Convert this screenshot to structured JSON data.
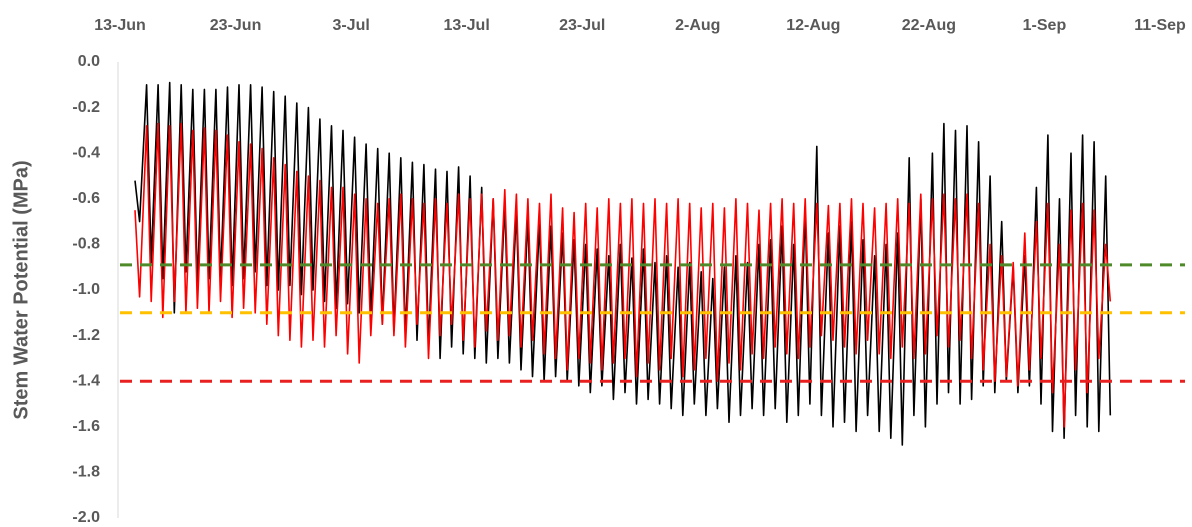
{
  "chart_data": {
    "type": "line",
    "y_label": "Stem Water Potential (MPa)",
    "xlim": [
      0,
      91
    ],
    "xticks": [
      {
        "value": 0,
        "label": "13-Jun"
      },
      {
        "value": 10,
        "label": "23-Jun"
      },
      {
        "value": 20,
        "label": "3-Jul"
      },
      {
        "value": 30,
        "label": "13-Jul"
      },
      {
        "value": 40,
        "label": "23-Jul"
      },
      {
        "value": 50,
        "label": "2-Aug"
      },
      {
        "value": 60,
        "label": "12-Aug"
      },
      {
        "value": 70,
        "label": "22-Aug"
      },
      {
        "value": 80,
        "label": "1-Sep"
      },
      {
        "value": 90,
        "label": "11-Sep"
      }
    ],
    "ylim": [
      -2,
      0
    ],
    "yticks": [
      {
        "value": 0,
        "label": "0.0"
      },
      -0.2,
      -0.4,
      -0.6,
      -0.8,
      {
        "value": -1,
        "label": "-1.0"
      },
      -1.2,
      -1.4,
      -1.6,
      -1.8,
      {
        "value": -2,
        "label": "-2.0"
      }
    ],
    "reference_lines": [
      {
        "value": -0.89,
        "color": "#4e8a2a"
      },
      {
        "value": -1.1,
        "color": "#ffc000"
      },
      {
        "value": -1.4,
        "color": "#e82020"
      }
    ],
    "x": [
      1.3,
      1.7,
      2.3,
      2.7,
      3.3,
      3.7,
      4.3,
      4.7,
      5.3,
      5.7,
      6.3,
      6.7,
      7.3,
      7.7,
      8.3,
      8.7,
      9.3,
      9.7,
      10.3,
      10.7,
      11.3,
      11.7,
      12.3,
      12.7,
      13.3,
      13.7,
      14.3,
      14.7,
      15.3,
      15.7,
      16.3,
      16.7,
      17.3,
      17.7,
      18.3,
      18.7,
      19.3,
      19.7,
      20.3,
      20.7,
      21.3,
      21.7,
      22.3,
      22.7,
      23.3,
      23.7,
      24.3,
      24.7,
      25.3,
      25.7,
      26.3,
      26.7,
      27.3,
      27.7,
      28.3,
      28.7,
      29.3,
      29.7,
      30.3,
      30.7,
      31.3,
      31.7,
      32.3,
      32.7,
      33.3,
      33.7,
      34.3,
      34.7,
      35.3,
      35.7,
      36.3,
      36.7,
      37.3,
      37.7,
      38.3,
      38.7,
      39.3,
      39.7,
      40.3,
      40.7,
      41.3,
      41.7,
      42.3,
      42.7,
      43.3,
      43.7,
      44.3,
      44.7,
      45.3,
      45.7,
      46.3,
      46.7,
      47.3,
      47.7,
      48.3,
      48.7,
      49.3,
      49.7,
      50.3,
      50.7,
      51.3,
      51.7,
      52.3,
      52.7,
      53.3,
      53.7,
      54.3,
      54.7,
      55.3,
      55.7,
      56.3,
      56.7,
      57.3,
      57.7,
      58.3,
      58.7,
      59.3,
      59.7,
      60.3,
      60.7,
      61.3,
      61.7,
      62.3,
      62.7,
      63.3,
      63.7,
      64.3,
      64.7,
      65.3,
      65.7,
      66.3,
      66.7,
      67.3,
      67.7,
      68.3,
      68.7,
      69.3,
      69.7,
      70.3,
      70.7,
      71.3,
      71.7,
      72.3,
      72.7,
      73.3,
      73.7,
      74.3,
      74.7,
      75.3,
      75.7,
      76.3,
      76.7,
      77.3,
      77.7,
      78.3,
      78.7,
      79.3,
      79.7,
      80.3,
      80.7,
      81.3,
      81.7,
      82.3,
      82.7,
      83.3,
      83.7,
      84.3,
      84.7,
      85.3,
      85.7
    ],
    "series": [
      {
        "color": "#000000",
        "values": [
          -0.52,
          -0.7,
          -0.1,
          -0.88,
          -0.1,
          -0.95,
          -0.09,
          -1.1,
          -0.1,
          -0.92,
          -0.12,
          -0.98,
          -0.12,
          -0.95,
          -0.12,
          -0.96,
          -0.11,
          -0.98,
          -0.1,
          -0.95,
          -0.1,
          -0.92,
          -0.11,
          -0.98,
          -0.13,
          -1.0,
          -0.15,
          -0.98,
          -0.18,
          -1.02,
          -0.2,
          -1.0,
          -0.25,
          -1.05,
          -0.28,
          -1.08,
          -0.3,
          -1.06,
          -0.33,
          -1.1,
          -0.36,
          -1.12,
          -0.38,
          -1.15,
          -0.4,
          -1.18,
          -0.42,
          -1.2,
          -0.44,
          -1.22,
          -0.45,
          -1.25,
          -0.47,
          -1.3,
          -0.48,
          -1.25,
          -0.46,
          -1.28,
          -0.5,
          -1.3,
          -0.55,
          -1.32,
          -0.6,
          -1.3,
          -0.62,
          -1.32,
          -0.65,
          -1.35,
          -0.68,
          -1.38,
          -0.7,
          -1.4,
          -0.72,
          -1.38,
          -0.75,
          -1.4,
          -0.78,
          -1.42,
          -0.8,
          -1.45,
          -0.82,
          -1.42,
          -0.85,
          -1.48,
          -0.8,
          -1.45,
          -0.86,
          -1.5,
          -0.82,
          -1.48,
          -0.88,
          -1.5,
          -0.85,
          -1.52,
          -0.9,
          -1.55,
          -0.88,
          -1.5,
          -0.92,
          -1.55,
          -0.95,
          -1.52,
          -0.9,
          -1.58,
          -0.85,
          -1.55,
          -0.88,
          -1.52,
          -0.8,
          -1.55,
          -0.78,
          -1.52,
          -0.72,
          -1.58,
          -0.8,
          -1.55,
          -0.65,
          -1.5,
          -0.37,
          -1.55,
          -0.75,
          -1.6,
          -0.72,
          -1.58,
          -0.7,
          -1.62,
          -0.78,
          -1.55,
          -0.85,
          -1.62,
          -0.8,
          -1.65,
          -0.75,
          -1.68,
          -0.42,
          -1.55,
          -0.6,
          -1.6,
          -0.4,
          -1.5,
          -0.27,
          -1.45,
          -0.3,
          -1.5,
          -0.28,
          -1.48,
          -0.35,
          -1.42,
          -0.5,
          -1.45,
          -0.7,
          -1.4,
          -0.9,
          -1.45,
          -0.85,
          -1.42,
          -0.55,
          -1.5,
          -0.32,
          -1.62,
          -0.6,
          -1.65,
          -0.4,
          -1.55,
          -0.32,
          -1.6,
          -0.35,
          -1.62,
          -0.5,
          -1.55
        ]
      },
      {
        "color": "#ff0000",
        "values": [
          -0.65,
          -1.03,
          -0.28,
          -1.05,
          -0.27,
          -1.12,
          -0.28,
          -1.05,
          -0.27,
          -1.1,
          -0.3,
          -1.08,
          -0.29,
          -1.1,
          -0.3,
          -1.05,
          -0.32,
          -1.12,
          -0.35,
          -1.08,
          -0.36,
          -1.1,
          -0.38,
          -1.15,
          -0.42,
          -1.2,
          -0.45,
          -1.22,
          -0.48,
          -1.25,
          -0.5,
          -1.22,
          -0.52,
          -1.25,
          -0.55,
          -1.2,
          -0.55,
          -1.28,
          -0.58,
          -1.32,
          -0.6,
          -1.2,
          -0.62,
          -1.15,
          -0.6,
          -1.2,
          -0.58,
          -1.25,
          -0.6,
          -1.15,
          -0.62,
          -1.3,
          -0.6,
          -1.2,
          -0.62,
          -1.15,
          -0.58,
          -1.22,
          -0.6,
          -1.25,
          -0.58,
          -1.18,
          -0.6,
          -1.22,
          -0.56,
          -1.2,
          -0.58,
          -1.25,
          -0.6,
          -1.22,
          -0.62,
          -1.28,
          -0.58,
          -1.3,
          -0.64,
          -1.35,
          -0.66,
          -1.3,
          -0.62,
          -1.32,
          -0.64,
          -1.35,
          -0.6,
          -1.32,
          -0.62,
          -1.3,
          -0.6,
          -1.38,
          -0.62,
          -1.32,
          -0.6,
          -1.35,
          -0.62,
          -1.3,
          -0.6,
          -1.38,
          -0.62,
          -1.35,
          -0.64,
          -1.3,
          -0.62,
          -1.4,
          -0.64,
          -1.32,
          -0.6,
          -1.35,
          -0.62,
          -1.28,
          -0.65,
          -1.3,
          -0.62,
          -1.25,
          -0.6,
          -1.28,
          -0.62,
          -1.3,
          -0.6,
          -1.25,
          -0.62,
          -1.2,
          -0.63,
          -1.22,
          -0.62,
          -1.25,
          -0.6,
          -1.28,
          -0.62,
          -1.22,
          -0.64,
          -1.28,
          -0.62,
          -1.3,
          -0.6,
          -1.25,
          -0.62,
          -1.3,
          -0.58,
          -1.28,
          -0.6,
          -1.2,
          -0.58,
          -1.25,
          -0.6,
          -1.22,
          -0.58,
          -1.3,
          -0.62,
          -1.35,
          -0.8,
          -1.4,
          -0.85,
          -1.38,
          -0.88,
          -1.42,
          -0.75,
          -1.35,
          -0.7,
          -1.3,
          -0.62,
          -1.45,
          -0.8,
          -1.6,
          -0.65,
          -1.35,
          -0.62,
          -1.45,
          -0.65,
          -1.3,
          -0.8,
          -1.05
        ]
      }
    ]
  }
}
